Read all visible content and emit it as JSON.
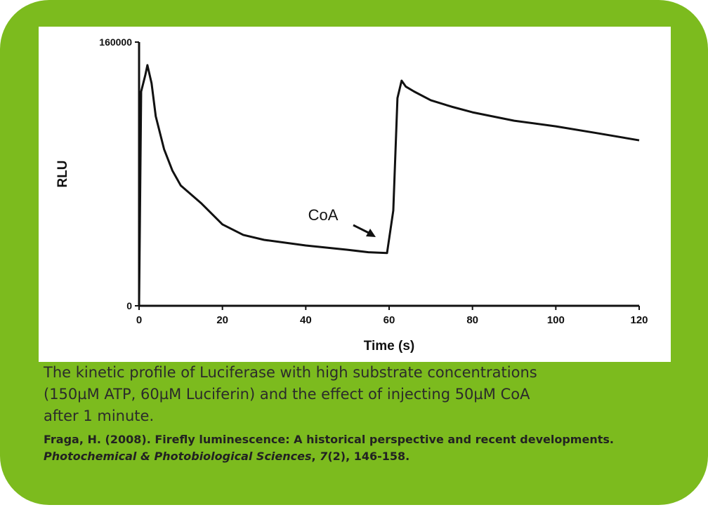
{
  "chart_data": {
    "type": "line",
    "xlabel": "Time (s)",
    "ylabel": "RLU",
    "annotation": "CoA",
    "x": [
      0,
      0.5,
      1.5,
      2,
      3,
      4,
      6,
      8,
      10,
      15,
      20,
      25,
      30,
      40,
      50,
      55,
      59.5,
      61,
      62,
      63,
      64,
      66,
      70,
      75,
      80,
      90,
      100,
      110,
      120
    ],
    "values": [
      0,
      130000,
      140000,
      146000,
      135000,
      115000,
      95000,
      82000,
      73000,
      62000,
      49400,
      43000,
      40000,
      36600,
      34000,
      32500,
      32000,
      57800,
      126000,
      136600,
      133000,
      130000,
      124700,
      120800,
      117400,
      112300,
      108900,
      104700,
      100400
    ],
    "color": "#111111",
    "xlim": [
      0,
      120
    ],
    "xticks": [
      0,
      20,
      40,
      60,
      80,
      100,
      120
    ],
    "ylim": [
      0,
      160000
    ],
    "yticks": [
      0,
      160000
    ]
  },
  "caption": [
    "The  kinetic profile of Luciferase  with high substrate concentrations",
    "(150µM ATP, 60µM Luciferin) and the effect of injecting 50µM CoA",
    "after 1 minute."
  ],
  "citation": {
    "authors": "Fraga, H. (2008). Firefly luminescence: A historical perspective and recent developments. ",
    "journal": "Photochemical & Photobiological Sciences",
    "sep": ", ",
    "volume": "7",
    "rest": "(2), 146-158."
  }
}
